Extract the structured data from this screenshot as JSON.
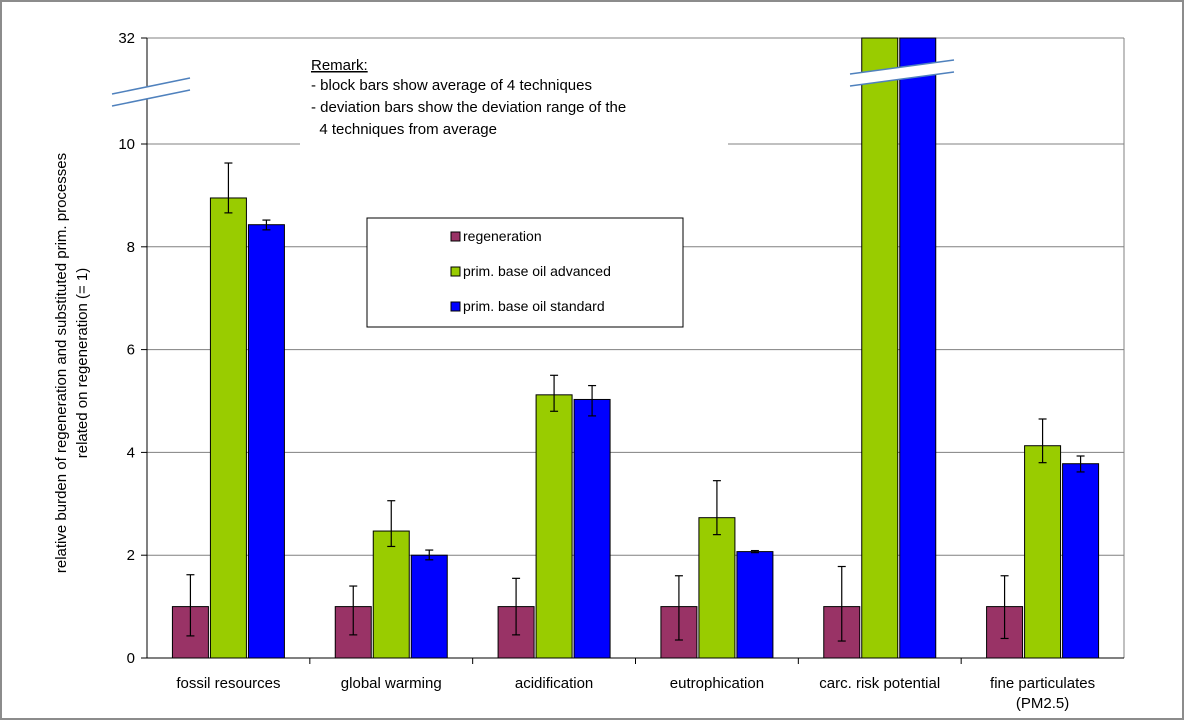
{
  "chart_data": {
    "type": "bar",
    "categories": [
      "fossil resources",
      "global warming",
      "acidification",
      "eutrophication",
      "carc. risk potential",
      "fine particulates\n(PM2.5)"
    ],
    "ylabel_lines": [
      "relative burden of regeneration and substituted prim. processes",
      "related on regeneration (= 1)"
    ],
    "xlabel": "",
    "yticks": [
      "0",
      "2",
      "4",
      "6",
      "8",
      "10",
      "32"
    ],
    "ylim": [
      0,
      11.5
    ],
    "axis_break": {
      "from": 10.6,
      "to": 32,
      "top_label": "32"
    },
    "grid": true,
    "series": [
      {
        "name": "regeneration",
        "color": "#993366",
        "values": [
          1,
          1,
          1,
          1,
          1,
          1
        ],
        "err_low": [
          0.43,
          0.45,
          0.45,
          0.35,
          0.33,
          0.38
        ],
        "err_high": [
          1.62,
          1.4,
          1.55,
          1.6,
          1.78,
          1.6
        ]
      },
      {
        "name": "prim. base oil advanced",
        "color": "#99cc00",
        "values": [
          8.95,
          2.47,
          5.12,
          2.73,
          33,
          4.13
        ],
        "err_low": [
          8.66,
          2.17,
          4.8,
          2.4,
          null,
          3.8
        ],
        "err_high": [
          9.63,
          3.06,
          5.5,
          3.45,
          null,
          4.65
        ]
      },
      {
        "name": "prim. base oil standard",
        "color": "#0000ff",
        "values": [
          8.43,
          2.0,
          5.03,
          2.07,
          33,
          3.78
        ],
        "err_low": [
          8.33,
          1.91,
          4.71,
          2.05,
          null,
          3.62
        ],
        "err_high": [
          8.52,
          2.1,
          5.3,
          2.09,
          null,
          3.93
        ]
      }
    ],
    "remark_lines": [
      "Remark:",
      "- block bars show average of 4 techniques",
      "- deviation bars show the deviation range of the",
      "  4 techniques from average"
    ],
    "legend_position": "center"
  }
}
